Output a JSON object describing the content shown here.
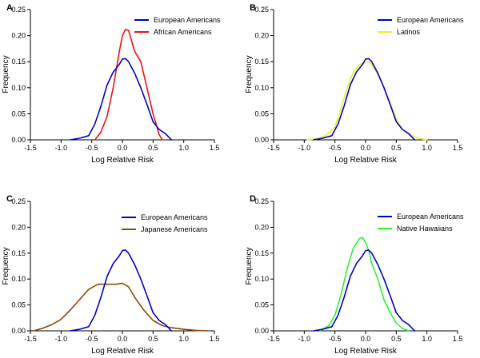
{
  "chart_data": [
    {
      "type": "line",
      "panel": "A",
      "xlabel": "Log Relative Risk",
      "ylabel": "Frequency",
      "xlim": [
        -1.5,
        1.5
      ],
      "ylim": [
        0,
        0.25
      ],
      "xticks": [
        "-1.5",
        "-1.0",
        "-0.5",
        "0.0",
        "0.5",
        "1.0",
        "1.5"
      ],
      "yticks": [
        "0.00",
        "0.05",
        "0.10",
        "0.15",
        "0.20",
        "0.25"
      ],
      "legend_position": "top-right",
      "series": [
        {
          "name": "European Americans",
          "color": "#0000cc",
          "x": [
            -0.85,
            -0.7,
            -0.55,
            -0.45,
            -0.35,
            -0.25,
            -0.15,
            -0.05,
            0.0,
            0.05,
            0.1,
            0.2,
            0.3,
            0.4,
            0.5,
            0.6,
            0.7,
            0.8
          ],
          "y": [
            0.0,
            0.003,
            0.008,
            0.03,
            0.065,
            0.105,
            0.13,
            0.145,
            0.155,
            0.156,
            0.15,
            0.128,
            0.1,
            0.068,
            0.035,
            0.02,
            0.012,
            0.0
          ]
        },
        {
          "name": "African Americans",
          "color": "#ee1111",
          "x": [
            -0.45,
            -0.35,
            -0.25,
            -0.15,
            -0.05,
            0.0,
            0.05,
            0.1,
            0.15,
            0.2,
            0.3,
            0.4,
            0.5,
            0.6,
            0.65
          ],
          "y": [
            0.0,
            0.015,
            0.045,
            0.1,
            0.17,
            0.2,
            0.212,
            0.21,
            0.19,
            0.17,
            0.15,
            0.1,
            0.05,
            0.01,
            0.0
          ]
        }
      ]
    },
    {
      "type": "line",
      "panel": "B",
      "xlabel": "Log Relative Risk",
      "ylabel": "Frequency",
      "xlim": [
        -1.5,
        1.5
      ],
      "ylim": [
        0,
        0.25
      ],
      "xticks": [
        "-1.5",
        "-1.0",
        "-0.5",
        "0.0",
        "0.5",
        "1.0",
        "1.5"
      ],
      "yticks": [
        "0.00",
        "0.05",
        "0.10",
        "0.15",
        "0.20",
        "0.25"
      ],
      "legend_position": "top-right",
      "series": [
        {
          "name": "European Americans",
          "color": "#0000cc",
          "x": [
            -0.85,
            -0.7,
            -0.55,
            -0.45,
            -0.35,
            -0.25,
            -0.15,
            -0.05,
            0.0,
            0.05,
            0.1,
            0.2,
            0.3,
            0.4,
            0.5,
            0.6,
            0.7,
            0.8
          ],
          "y": [
            0.0,
            0.003,
            0.008,
            0.03,
            0.065,
            0.105,
            0.13,
            0.145,
            0.155,
            0.156,
            0.15,
            0.128,
            0.1,
            0.068,
            0.035,
            0.02,
            0.012,
            0.0
          ]
        },
        {
          "name": "Latinos",
          "color": "#eeee22",
          "x": [
            -0.95,
            -0.8,
            -0.65,
            -0.5,
            -0.4,
            -0.3,
            -0.2,
            -0.1,
            0.0,
            0.05,
            0.1,
            0.2,
            0.3,
            0.4,
            0.5,
            0.6,
            0.75,
            0.9,
            1.0
          ],
          "y": [
            0.0,
            0.002,
            0.008,
            0.025,
            0.06,
            0.1,
            0.13,
            0.145,
            0.148,
            0.15,
            0.145,
            0.125,
            0.1,
            0.07,
            0.04,
            0.02,
            0.008,
            0.002,
            0.0
          ]
        }
      ]
    },
    {
      "type": "line",
      "panel": "C",
      "xlabel": "Log Relative Risk",
      "ylabel": "Frequency",
      "xlim": [
        -1.5,
        1.5
      ],
      "ylim": [
        0,
        0.25
      ],
      "xticks": [
        "-1.5",
        "-1.0",
        "-0.5",
        "0.0",
        "0.5",
        "1.0",
        "1.5"
      ],
      "yticks": [
        "0.00",
        "0.05",
        "0.10",
        "0.15",
        "0.20",
        "0.25"
      ],
      "legend_position": "top-right",
      "series": [
        {
          "name": "European Americans",
          "color": "#0000cc",
          "x": [
            -0.85,
            -0.7,
            -0.55,
            -0.45,
            -0.35,
            -0.25,
            -0.15,
            -0.05,
            0.0,
            0.05,
            0.1,
            0.2,
            0.3,
            0.4,
            0.5,
            0.6,
            0.7,
            0.8
          ],
          "y": [
            0.0,
            0.003,
            0.008,
            0.03,
            0.065,
            0.105,
            0.13,
            0.145,
            0.155,
            0.156,
            0.15,
            0.128,
            0.1,
            0.068,
            0.035,
            0.02,
            0.012,
            0.0
          ]
        },
        {
          "name": "Japanese Americans",
          "color": "#8b4a00",
          "x": [
            -1.45,
            -1.3,
            -1.15,
            -1.0,
            -0.85,
            -0.7,
            -0.55,
            -0.4,
            -0.25,
            -0.1,
            0.0,
            0.1,
            0.2,
            0.35,
            0.5,
            0.65,
            0.8,
            1.0,
            1.2,
            1.4
          ],
          "y": [
            0.0,
            0.005,
            0.012,
            0.022,
            0.04,
            0.06,
            0.08,
            0.09,
            0.09,
            0.09,
            0.092,
            0.085,
            0.065,
            0.04,
            0.02,
            0.01,
            0.006,
            0.003,
            0.001,
            0.0
          ]
        }
      ]
    },
    {
      "type": "line",
      "panel": "D",
      "xlabel": "Log Relative Risk",
      "ylabel": "Frequency",
      "xlim": [
        -1.5,
        1.5
      ],
      "ylim": [
        0,
        0.25
      ],
      "xticks": [
        "-1.5",
        "-1.0",
        "-0.5",
        "0.0",
        "0.5",
        "1.0",
        "1.5"
      ],
      "yticks": [
        "0.00",
        "0.05",
        "0.10",
        "0.15",
        "0.20",
        "0.25"
      ],
      "legend_position": "top-right",
      "series": [
        {
          "name": "European Americans",
          "color": "#0000cc",
          "x": [
            -0.85,
            -0.7,
            -0.55,
            -0.45,
            -0.35,
            -0.25,
            -0.15,
            -0.05,
            0.0,
            0.05,
            0.1,
            0.2,
            0.3,
            0.4,
            0.5,
            0.6,
            0.7,
            0.8
          ],
          "y": [
            0.0,
            0.003,
            0.008,
            0.03,
            0.065,
            0.105,
            0.13,
            0.145,
            0.155,
            0.156,
            0.15,
            0.128,
            0.1,
            0.068,
            0.035,
            0.02,
            0.012,
            0.0
          ]
        },
        {
          "name": "Native Hawaiians",
          "color": "#33ee33",
          "x": [
            -0.75,
            -0.6,
            -0.5,
            -0.4,
            -0.3,
            -0.2,
            -0.1,
            -0.05,
            0.0,
            0.05,
            0.1,
            0.2,
            0.3,
            0.4,
            0.5,
            0.6,
            0.7
          ],
          "y": [
            0.0,
            0.01,
            0.03,
            0.07,
            0.12,
            0.16,
            0.178,
            0.18,
            0.17,
            0.155,
            0.13,
            0.1,
            0.06,
            0.035,
            0.015,
            0.005,
            0.0
          ]
        }
      ]
    }
  ]
}
